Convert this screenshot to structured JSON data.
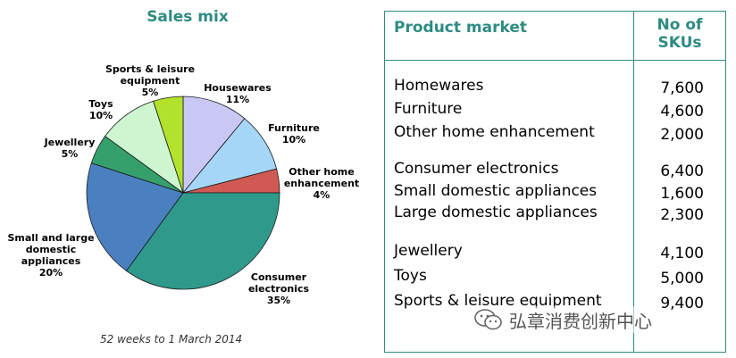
{
  "chart_data": {
    "type": "pie",
    "title": "Sales mix",
    "caption": "52 weeks to 1 March 2014",
    "slices": [
      {
        "label": [
          "Housewares"
        ],
        "pct": "11%",
        "value": 11,
        "color": "#c9c8f5"
      },
      {
        "label": [
          "Furniture"
        ],
        "pct": "10%",
        "value": 10,
        "color": "#a6d6f7"
      },
      {
        "label": [
          "Other home",
          "enhancement"
        ],
        "pct": "4%",
        "value": 4,
        "color": "#d05a53"
      },
      {
        "label": [
          "Consumer",
          "electronics"
        ],
        "pct": "35%",
        "value": 35,
        "color": "#2f9a8c"
      },
      {
        "label": [
          "Small and large",
          "domestic",
          "appliances"
        ],
        "pct": "20%",
        "value": 20,
        "color": "#4a7fc0"
      },
      {
        "label": [
          "Jewellery"
        ],
        "pct": "5%",
        "value": 5,
        "color": "#35a06c"
      },
      {
        "label": [
          "Toys"
        ],
        "pct": "10%",
        "value": 10,
        "color": "#cdf5cf"
      },
      {
        "label": [
          "Sports & leisure",
          "equipment"
        ],
        "pct": "5%",
        "value": 5,
        "color": "#b2e22b"
      }
    ]
  },
  "table": {
    "header_product": "Product market",
    "header_skus_line1": "No of",
    "header_skus_line2": "SKUs",
    "rows": [
      {
        "name": "Homewares",
        "value": "7,600"
      },
      {
        "name": "Furniture",
        "value": "4,600"
      },
      {
        "name": "Other home enhancement",
        "value": "2,000"
      },
      {
        "name": "Consumer electronics",
        "value": "6,400"
      },
      {
        "name": "Small domestic appliances",
        "value": "1,600"
      },
      {
        "name": "Large domestic appliances",
        "value": "2,300"
      },
      {
        "name": "Jewellery",
        "value": "4,100"
      },
      {
        "name": "Toys",
        "value": "5,000"
      },
      {
        "name": "Sports & leisure equipment",
        "value": "9,400"
      }
    ]
  },
  "watermark": {
    "text": "弘章消费创新中心",
    "icon": "wechat-icon"
  }
}
